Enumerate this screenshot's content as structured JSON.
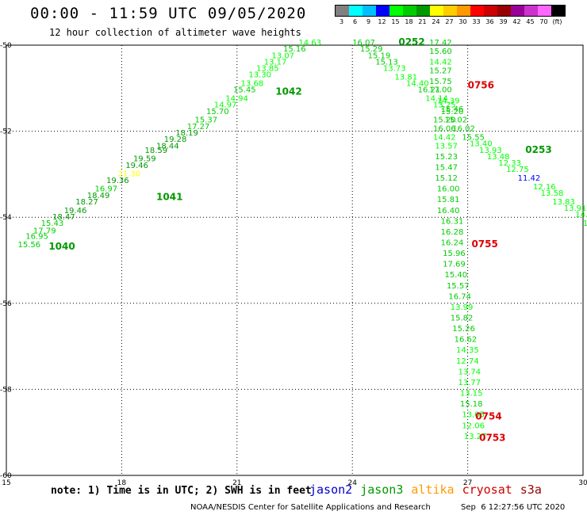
{
  "header": {
    "title": "00:00 - 11:59 UTC 09/05/2020",
    "subtitle": "12 hour collection of altimeter wave heights"
  },
  "colorbar": {
    "colors": [
      "#808080",
      "#00ffff",
      "#00bfff",
      "#0000ff",
      "#00ff00",
      "#00cc00",
      "#009900",
      "#ffff00",
      "#ffcc00",
      "#ff9900",
      "#ff0000",
      "#cc0000",
      "#990000",
      "#990099",
      "#cc33cc",
      "#ff66ff",
      "#000000"
    ],
    "labels": [
      "3",
      "6",
      "9",
      "12",
      "15",
      "18",
      "21",
      "24",
      "27",
      "30",
      "33",
      "36",
      "39",
      "42",
      "45",
      "70",
      "(ft)"
    ]
  },
  "footer": {
    "note": "note: 1) Time is in UTC; 2) SWH is in feet",
    "missions": [
      {
        "name": "jason2",
        "color": "#0000cc"
      },
      {
        "name": "jason3",
        "color": "#009900"
      },
      {
        "name": "altika",
        "color": "#ff9900"
      },
      {
        "name": "cryosat",
        "color": "#cc0000"
      },
      {
        "name": "s3a",
        "color": "#990000"
      }
    ],
    "credit": "NOAA/NESDIS Center for Satellite Applications and Research",
    "timestamp": "Sep  6 12:27:56 UTC 2020"
  },
  "chart_data": {
    "type": "scatter",
    "x_ticks": [
      "15",
      "18",
      "21",
      "24",
      "27",
      "30"
    ],
    "x_tick_values": [
      15,
      18,
      21,
      24,
      27,
      30
    ],
    "y_ticks": [
      "-50",
      "-52",
      "-54",
      "-56",
      "-58",
      "-60"
    ],
    "y_tick_values": [
      -50,
      -52,
      -54,
      -56,
      -58,
      -60
    ],
    "xlim": [
      15,
      30
    ],
    "ylim": [
      -60,
      -50
    ],
    "grid": true,
    "points": [
      {
        "x": 15.3,
        "y": -54.7,
        "v": "15.56",
        "c": "#00cc00"
      },
      {
        "x": 15.5,
        "y": -54.5,
        "v": "16.95",
        "c": "#00cc00"
      },
      {
        "x": 15.7,
        "y": -54.37,
        "v": "17.79",
        "c": "#00cc00"
      },
      {
        "x": 15.9,
        "y": -54.2,
        "v": "15.43",
        "c": "#00cc00"
      },
      {
        "x": 16.2,
        "y": -54.05,
        "v": "18.47",
        "c": "#009900"
      },
      {
        "x": 16.5,
        "y": -53.9,
        "v": "19.46",
        "c": "#009900"
      },
      {
        "x": 16.8,
        "y": -53.7,
        "v": "18.27",
        "c": "#009900"
      },
      {
        "x": 17.1,
        "y": -53.55,
        "v": "18.49",
        "c": "#009900"
      },
      {
        "x": 17.3,
        "y": -53.4,
        "v": "16.97",
        "c": "#00cc00"
      },
      {
        "x": 17.6,
        "y": -53.2,
        "v": "19.36",
        "c": "#009900"
      },
      {
        "x": 17.9,
        "y": -53.05,
        "v": "21.30",
        "c": "#ffff00"
      },
      {
        "x": 18.1,
        "y": -52.85,
        "v": "19.46",
        "c": "#009900"
      },
      {
        "x": 18.3,
        "y": -52.7,
        "v": "19.59",
        "c": "#009900"
      },
      {
        "x": 18.6,
        "y": -52.5,
        "v": "18.59",
        "c": "#009900"
      },
      {
        "x": 18.9,
        "y": -52.4,
        "v": "18.44",
        "c": "#009900"
      },
      {
        "x": 19.1,
        "y": -52.25,
        "v": "19.28",
        "c": "#009900"
      },
      {
        "x": 19.4,
        "y": -52.1,
        "v": "18.19",
        "c": "#009900"
      },
      {
        "x": 19.7,
        "y": -51.95,
        "v": "17.27",
        "c": "#00cc00"
      },
      {
        "x": 19.9,
        "y": -51.8,
        "v": "15.37",
        "c": "#00cc00"
      },
      {
        "x": 20.2,
        "y": -51.6,
        "v": "15.70",
        "c": "#00cc00"
      },
      {
        "x": 20.4,
        "y": -51.45,
        "v": "14.97",
        "c": "#00ff00"
      },
      {
        "x": 20.7,
        "y": -51.3,
        "v": "14.94",
        "c": "#00ff00"
      },
      {
        "x": 20.9,
        "y": -51.1,
        "v": "15.45",
        "c": "#00cc00"
      },
      {
        "x": 21.1,
        "y": -50.95,
        "v": "13.68",
        "c": "#00ff00"
      },
      {
        "x": 21.3,
        "y": -50.75,
        "v": "13.30",
        "c": "#00ff00"
      },
      {
        "x": 21.5,
        "y": -50.6,
        "v": "13.85",
        "c": "#00ff00"
      },
      {
        "x": 21.7,
        "y": -50.45,
        "v": "13.17",
        "c": "#00ff00"
      },
      {
        "x": 21.9,
        "y": -50.3,
        "v": "13.07",
        "c": "#00ff00"
      },
      {
        "x": 22.2,
        "y": -50.15,
        "v": "15.16",
        "c": "#00cc00"
      },
      {
        "x": 22.6,
        "y": -50.0,
        "v": "14.63",
        "c": "#00ff00"
      },
      {
        "x": 24.0,
        "y": -50.0,
        "v": "16.07",
        "c": "#00cc00"
      },
      {
        "x": 24.2,
        "y": -50.15,
        "v": "15.29",
        "c": "#00cc00"
      },
      {
        "x": 24.4,
        "y": -50.3,
        "v": "15.19",
        "c": "#00cc00"
      },
      {
        "x": 24.6,
        "y": -50.45,
        "v": "15.13",
        "c": "#00cc00"
      },
      {
        "x": 24.8,
        "y": -50.6,
        "v": "13.73",
        "c": "#00ff00"
      },
      {
        "x": 25.1,
        "y": -50.8,
        "v": "13.81",
        "c": "#00ff00"
      },
      {
        "x": 25.4,
        "y": -50.95,
        "v": "14.40",
        "c": "#00ff00"
      },
      {
        "x": 25.7,
        "y": -51.1,
        "v": "16.21",
        "c": "#00cc00"
      },
      {
        "x": 25.9,
        "y": -51.3,
        "v": "14.14",
        "c": "#00ff00"
      },
      {
        "x": 26.1,
        "y": -51.45,
        "v": "13.25",
        "c": "#00ff00"
      },
      {
        "x": 26.3,
        "y": -51.6,
        "v": "15.20",
        "c": "#00cc00"
      },
      {
        "x": 26.4,
        "y": -51.8,
        "v": "15.02",
        "c": "#00cc00"
      },
      {
        "x": 26.6,
        "y": -52.0,
        "v": "16.02",
        "c": "#00cc00"
      },
      {
        "x": 26.85,
        "y": -52.2,
        "v": "15.55",
        "c": "#00cc00"
      },
      {
        "x": 27.05,
        "y": -52.35,
        "v": "13.40",
        "c": "#00ff00"
      },
      {
        "x": 27.3,
        "y": -52.5,
        "v": "13.93",
        "c": "#00ff00"
      },
      {
        "x": 27.5,
        "y": -52.65,
        "v": "13.48",
        "c": "#00ff00"
      },
      {
        "x": 27.8,
        "y": -52.8,
        "v": "12.33",
        "c": "#00ff00"
      },
      {
        "x": 28.0,
        "y": -52.95,
        "v": "12.75",
        "c": "#00ff00"
      },
      {
        "x": 28.3,
        "y": -53.15,
        "v": "11.42",
        "c": "#0000ff"
      },
      {
        "x": 28.7,
        "y": -53.35,
        "v": "12.16",
        "c": "#00ff00"
      },
      {
        "x": 28.9,
        "y": -53.5,
        "v": "13.58",
        "c": "#00ff00"
      },
      {
        "x": 29.2,
        "y": -53.7,
        "v": "13.83",
        "c": "#00ff00"
      },
      {
        "x": 29.5,
        "y": -53.85,
        "v": "13.91",
        "c": "#00ff00"
      },
      {
        "x": 29.8,
        "y": -54.0,
        "v": "14.79",
        "c": "#00ff00"
      },
      {
        "x": 30.0,
        "y": -54.2,
        "v": "14.93",
        "c": "#00ff00"
      },
      {
        "x": 26.0,
        "y": -50.0,
        "v": "17.42",
        "c": "#00cc00"
      },
      {
        "x": 26.0,
        "y": -50.2,
        "v": "15.60",
        "c": "#00cc00"
      },
      {
        "x": 26.0,
        "y": -50.45,
        "v": "14.42",
        "c": "#00ff00"
      },
      {
        "x": 26.0,
        "y": -50.65,
        "v": "15.27",
        "c": "#00cc00"
      },
      {
        "x": 26.0,
        "y": -50.9,
        "v": "15.75",
        "c": "#00cc00"
      },
      {
        "x": 26.0,
        "y": -51.1,
        "v": "17.00",
        "c": "#00cc00"
      },
      {
        "x": 26.2,
        "y": -51.35,
        "v": "14.39",
        "c": "#00ff00"
      },
      {
        "x": 26.3,
        "y": -51.55,
        "v": "15.46",
        "c": "#00cc00"
      },
      {
        "x": 26.1,
        "y": -51.8,
        "v": "15.20",
        "c": "#00cc00"
      },
      {
        "x": 26.1,
        "y": -52.0,
        "v": "16.06",
        "c": "#00cc00"
      },
      {
        "x": 26.1,
        "y": -52.2,
        "v": "14.42",
        "c": "#00ff00"
      },
      {
        "x": 26.15,
        "y": -52.4,
        "v": "13.57",
        "c": "#00ff00"
      },
      {
        "x": 26.15,
        "y": -52.65,
        "v": "15.23",
        "c": "#00cc00"
      },
      {
        "x": 26.15,
        "y": -52.9,
        "v": "15.47",
        "c": "#00cc00"
      },
      {
        "x": 26.15,
        "y": -53.15,
        "v": "15.12",
        "c": "#00cc00"
      },
      {
        "x": 26.2,
        "y": -53.4,
        "v": "16.00",
        "c": "#00cc00"
      },
      {
        "x": 26.2,
        "y": -53.65,
        "v": "15.81",
        "c": "#00cc00"
      },
      {
        "x": 26.2,
        "y": -53.9,
        "v": "16.40",
        "c": "#00cc00"
      },
      {
        "x": 26.3,
        "y": -54.15,
        "v": "16.31",
        "c": "#00cc00"
      },
      {
        "x": 26.3,
        "y": -54.4,
        "v": "16.28",
        "c": "#00cc00"
      },
      {
        "x": 26.3,
        "y": -54.65,
        "v": "16.24",
        "c": "#00cc00"
      },
      {
        "x": 26.35,
        "y": -54.9,
        "v": "15.96",
        "c": "#00cc00"
      },
      {
        "x": 26.35,
        "y": -55.15,
        "v": "17.69",
        "c": "#00cc00"
      },
      {
        "x": 26.4,
        "y": -55.4,
        "v": "15.40",
        "c": "#00cc00"
      },
      {
        "x": 26.45,
        "y": -55.65,
        "v": "15.57",
        "c": "#00cc00"
      },
      {
        "x": 26.5,
        "y": -55.9,
        "v": "16.74",
        "c": "#00cc00"
      },
      {
        "x": 26.55,
        "y": -56.15,
        "v": "13.99",
        "c": "#00ff00"
      },
      {
        "x": 26.55,
        "y": -56.4,
        "v": "15.82",
        "c": "#00cc00"
      },
      {
        "x": 26.6,
        "y": -56.65,
        "v": "15.26",
        "c": "#00cc00"
      },
      {
        "x": 26.65,
        "y": -56.9,
        "v": "16.62",
        "c": "#00cc00"
      },
      {
        "x": 26.7,
        "y": -57.15,
        "v": "14.35",
        "c": "#00ff00"
      },
      {
        "x": 26.7,
        "y": -57.4,
        "v": "12.74",
        "c": "#00ff00"
      },
      {
        "x": 26.75,
        "y": -57.65,
        "v": "13.74",
        "c": "#00ff00"
      },
      {
        "x": 26.75,
        "y": -57.9,
        "v": "13.77",
        "c": "#00ff00"
      },
      {
        "x": 26.8,
        "y": -58.15,
        "v": "13.15",
        "c": "#00ff00"
      },
      {
        "x": 26.8,
        "y": -58.4,
        "v": "15.18",
        "c": "#00cc00"
      },
      {
        "x": 26.85,
        "y": -58.65,
        "v": "13.05",
        "c": "#00ff00"
      },
      {
        "x": 26.85,
        "y": -58.9,
        "v": "12.06",
        "c": "#00ff00"
      },
      {
        "x": 26.9,
        "y": -59.15,
        "v": "13.27",
        "c": "#00ff00"
      }
    ],
    "pass_labels": [
      {
        "x": 16.1,
        "y": -54.75,
        "text": "1040",
        "c": "#009900"
      },
      {
        "x": 18.9,
        "y": -53.6,
        "text": "1041",
        "c": "#009900"
      },
      {
        "x": 22.0,
        "y": -51.15,
        "text": "1042",
        "c": "#009900"
      },
      {
        "x": 25.2,
        "y": -50.0,
        "text": "0252",
        "c": "#009900"
      },
      {
        "x": 28.5,
        "y": -52.5,
        "text": "0253",
        "c": "#009900"
      },
      {
        "x": 27.0,
        "y": -51.0,
        "text": "0756",
        "c": "#dd0000"
      },
      {
        "x": 27.1,
        "y": -54.7,
        "text": "0755",
        "c": "#dd0000"
      },
      {
        "x": 27.2,
        "y": -58.7,
        "text": "0754",
        "c": "#dd0000"
      },
      {
        "x": 27.3,
        "y": -59.2,
        "text": "0753",
        "c": "#dd0000"
      }
    ]
  }
}
